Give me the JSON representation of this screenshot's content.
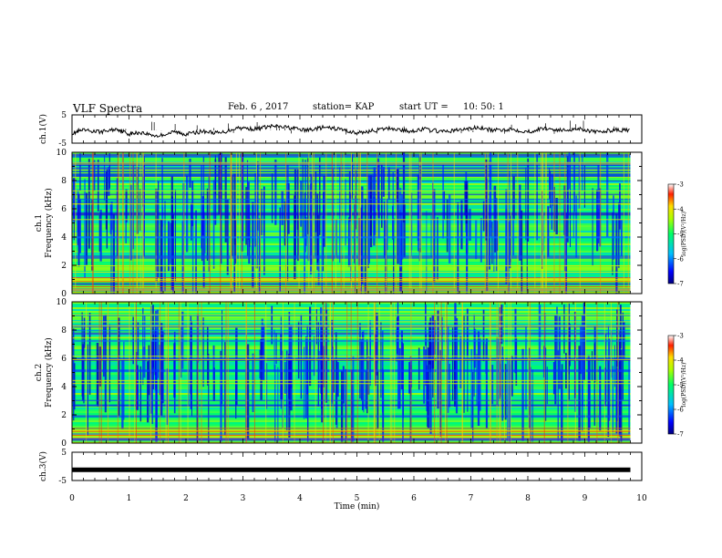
{
  "header": {
    "title": "VLF Spectra",
    "date": "Feb. 6 , 2017",
    "station": "station= KAP",
    "start_label": "start UT =",
    "start_time": "10: 50: 1"
  },
  "colorbar": {
    "label": "log(PSD)(V²/Hz)",
    "ticks": [
      "-3",
      "-4",
      "-5",
      "-6",
      "-7"
    ]
  },
  "chart_data": [
    {
      "type": "line",
      "panel": "ch1-waveform",
      "ylabel": "ch.1(V)",
      "ylim": [
        -5,
        5
      ],
      "ytick_labels": [
        "5",
        "-5"
      ],
      "xlim": [
        0,
        10
      ],
      "x_minutes": [
        0,
        0.2,
        0.5,
        0.8,
        1.0,
        1.2,
        1.5,
        1.8,
        2.0,
        2.3,
        2.6,
        2.9,
        3.2,
        3.5,
        3.8,
        4.1,
        4.4,
        4.7,
        5.0,
        5.3,
        5.6,
        5.9,
        6.2,
        6.5,
        6.8,
        7.1,
        7.4,
        7.7,
        8.0,
        8.3,
        8.6,
        8.9,
        9.2,
        9.5,
        9.8
      ],
      "y_volts": [
        -1.5,
        -0.5,
        -1.0,
        0.0,
        -1.8,
        -1.2,
        -2.5,
        -1.0,
        -1.8,
        -0.8,
        -1.5,
        0.5,
        0.0,
        1.0,
        0.5,
        -0.5,
        0.5,
        0.0,
        -1.5,
        -0.5,
        0.3,
        -0.8,
        0.0,
        -1.0,
        -0.3,
        0.5,
        -0.5,
        0.0,
        -1.0,
        0.3,
        -0.5,
        0.2,
        -1.2,
        -0.3,
        -0.5
      ]
    },
    {
      "type": "heatmap",
      "panel": "ch1-spectrogram",
      "ylabel": "ch.1 Frequency (kHz)",
      "ylim": [
        0,
        10
      ],
      "ytick_labels": [
        "0",
        "2",
        "4",
        "6",
        "8",
        "10"
      ],
      "xlim": [
        0,
        10
      ],
      "zlabel": "log(PSD)(V²/Hz)",
      "zlim": [
        -7,
        -3
      ]
    },
    {
      "type": "heatmap",
      "panel": "ch2-spectrogram",
      "ylabel": "ch.2 Frequency (kHz)",
      "ylim": [
        0,
        10
      ],
      "ytick_labels": [
        "0",
        "2",
        "4",
        "6",
        "8",
        "10"
      ],
      "xlim": [
        0,
        10
      ],
      "zlabel": "log(PSD)(V²/Hz)",
      "zlim": [
        -7,
        -3
      ]
    },
    {
      "type": "line",
      "panel": "ch3-waveform",
      "ylabel": "ch.3(V)",
      "ylim": [
        -5,
        5
      ],
      "ytick_labels": [
        "5",
        "-5"
      ],
      "xlim": [
        0,
        10
      ],
      "x_minutes": [
        0,
        9.8
      ],
      "y_volts": [
        -1.2,
        -1.2
      ],
      "xlabel": "Time (min)",
      "xtick_labels": [
        "0",
        "1",
        "2",
        "3",
        "4",
        "5",
        "6",
        "7",
        "8",
        "9",
        "10"
      ]
    }
  ]
}
